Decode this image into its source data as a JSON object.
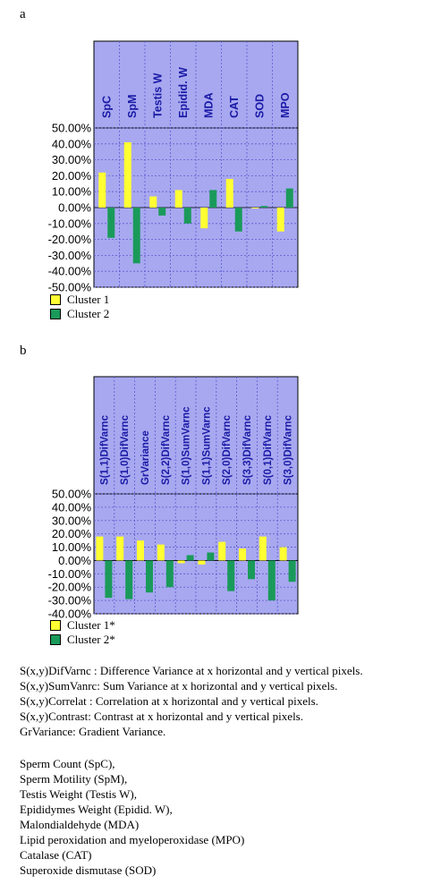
{
  "panels": {
    "a": {
      "label": "a"
    },
    "b": {
      "label": "b"
    }
  },
  "chart_data": [
    {
      "type": "bar",
      "categories": [
        "SpC",
        "SpM",
        "Testis W",
        "Epidid. W",
        "MDA",
        "CAT",
        "SOD",
        "MPO"
      ],
      "series": [
        {
          "name": "Cluster 1",
          "color": "#ffff33",
          "values": [
            22,
            41,
            7,
            11,
            -13,
            18,
            0,
            -15
          ]
        },
        {
          "name": "Cluster 2",
          "color": "#1a9a5a",
          "values": [
            -19,
            -35,
            -5,
            -10,
            11,
            -15,
            1,
            12
          ]
        }
      ],
      "ylim": [
        -50,
        50
      ],
      "yticks": [
        "50.00%",
        "40.00%",
        "30.00%",
        "20.00%",
        "10.00%",
        "0.00%",
        "-10.00%",
        "-20.00%",
        "-30.00%",
        "-40.00%",
        "-50.00%"
      ],
      "grid": true,
      "legend": "bottom-left"
    },
    {
      "type": "bar",
      "categories": [
        "S(1,1)DifVarnc",
        "S(1,0)DifVarnc",
        "GrVariance",
        "S(2,2)DifVarnc",
        "S(1,0)SumVarnc",
        "S(1,1)SumVarnc",
        "S(2,0)DifVarnc",
        "S(3,3)DifVarnc",
        "S(0,1)DifVarnc",
        "S(3,0)DifVarnc"
      ],
      "series": [
        {
          "name": "Cluster 1*",
          "color": "#ffff33",
          "values": [
            18,
            18,
            15,
            12,
            -2,
            -3,
            14,
            9,
            18,
            10
          ]
        },
        {
          "name": "Cluster 2*",
          "color": "#1a9a5a",
          "values": [
            -28,
            -29,
            -24,
            -20,
            4,
            6,
            -23,
            -14,
            -30,
            -16
          ]
        }
      ],
      "ylim": [
        -40,
        50
      ],
      "yticks": [
        "50.00%",
        "40.00%",
        "30.00%",
        "20.00%",
        "10.00%",
        "0.00%",
        "-10.00%",
        "-20.00%",
        "-30.00%",
        "-40.00%"
      ],
      "grid": true,
      "legend": "bottom-left"
    }
  ],
  "notes": {
    "definitions": [
      "S(x,y)DifVarnc : Difference Variance at x horizontal and y vertical pixels.",
      "S(x,y)SumVanrc: Sum Variance at x horizontal and y vertical pixels.",
      "S(x,y)Correlat : Correlation at x horizontal and y vertical pixels.",
      "S(x,y)Contrast: Contrast at x horizontal and y vertical pixels.",
      "GrVariance: Gradient Variance."
    ],
    "abbreviations": [
      "Sperm Count (SpC),",
      "Sperm Motility (SpM),",
      "Testis Weight (Testis W),",
      "Epididymes Weight (Epidid. W),",
      "Malondialdehyde (MDA)",
      "Lipid peroxidation and myeloperoxidase (MPO)",
      "Catalase (CAT)",
      "Superoxide dismutase (SOD)"
    ]
  }
}
